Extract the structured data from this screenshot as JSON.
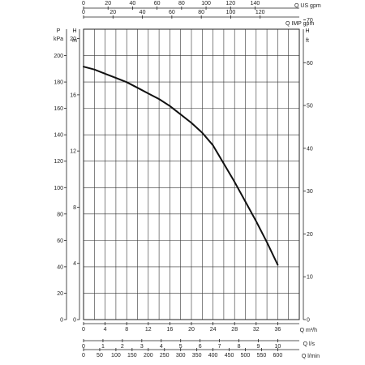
{
  "chart_data": {
    "type": "line",
    "series": [
      {
        "x": [
          0,
          2,
          4,
          6,
          8,
          10,
          12,
          14,
          16,
          18,
          20,
          22,
          24,
          26,
          28,
          30,
          32,
          34,
          36
        ],
        "y": [
          18.0,
          17.8,
          17.5,
          17.2,
          16.9,
          16.5,
          16.1,
          15.7,
          15.2,
          14.6,
          14.0,
          13.3,
          12.4,
          11.1,
          9.8,
          8.4,
          7.0,
          5.5,
          3.9
        ]
      }
    ],
    "xlim": [
      0,
      40
    ],
    "ylim": [
      0,
      20.67
    ],
    "grid": true,
    "scales": {
      "bottom_m3h": {
        "unit_label": "Q m³/h",
        "ticks": [
          "0",
          "4",
          "8",
          "12",
          "16",
          "20",
          "24",
          "28",
          "32",
          "36"
        ],
        "values": [
          0,
          4,
          8,
          12,
          16,
          20,
          24,
          28,
          32,
          36
        ]
      },
      "bottom_ls": {
        "unit_label": "Q l/s",
        "ticks": [
          "0",
          "1",
          "2",
          "3",
          "4",
          "5",
          "6",
          "7",
          "8",
          "9",
          "10"
        ],
        "values": [
          0,
          1,
          2,
          3,
          4,
          5,
          6,
          7,
          8,
          9,
          10
        ]
      },
      "bottom_lmin": {
        "unit_label": "Q l/min",
        "ticks": [
          "0",
          "50",
          "100",
          "150",
          "200",
          "250",
          "300",
          "350",
          "400",
          "450",
          "500",
          "550",
          "600"
        ],
        "values": [
          0,
          50,
          100,
          150,
          200,
          250,
          300,
          350,
          400,
          450,
          500,
          550,
          600
        ]
      },
      "top_usgpm": {
        "unit_label": "Q US gpm",
        "ticks": [
          "0",
          "20",
          "40",
          "60",
          "80",
          "100",
          "120",
          "140"
        ],
        "values": [
          0,
          20,
          40,
          60,
          80,
          100,
          120,
          140
        ]
      },
      "top_impgpm": {
        "unit_label": "Q IMP gpm",
        "ticks": [
          "0",
          "20",
          "40",
          "60",
          "80",
          "100",
          "120"
        ],
        "values": [
          0,
          20,
          40,
          60,
          80,
          100,
          120
        ]
      },
      "left_kpa": {
        "unit_label": "P",
        "unit_sub": "kPa",
        "ticks": [
          "0",
          "20",
          "40",
          "60",
          "80",
          "100",
          "120",
          "140",
          "160",
          "180",
          "200"
        ],
        "values": [
          0,
          20,
          40,
          60,
          80,
          100,
          120,
          140,
          160,
          180,
          200
        ]
      },
      "left_m": {
        "unit_label": "H",
        "unit_sub": "m",
        "ticks": [
          "0",
          "4",
          "8",
          "12",
          "16",
          "20"
        ],
        "values": [
          0,
          4,
          8,
          12,
          16,
          20
        ]
      },
      "right_ft": {
        "unit_label": "H",
        "unit_sub": "ft",
        "ticks": [
          "0",
          "10",
          "20",
          "30",
          "40",
          "50",
          "60",
          "70"
        ],
        "values": [
          0,
          10,
          20,
          30,
          40,
          50,
          60,
          70
        ]
      }
    }
  }
}
